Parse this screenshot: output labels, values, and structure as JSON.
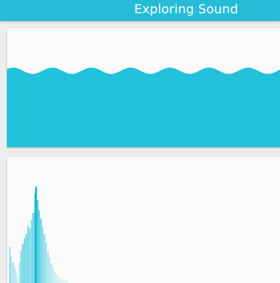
{
  "app_bar": {
    "title": "Exploring Sound"
  },
  "colors": {
    "app_bar": "#26bcd8",
    "waveform_fill": "#22c3dd",
    "spectrum_bar": "#25c2dc",
    "background": "#eeeeee",
    "card": "#fafafa"
  },
  "waveform_card": {
    "name": "waveform-visualizer"
  },
  "spectrum_card": {
    "name": "frequency-spectrum-visualizer"
  }
}
